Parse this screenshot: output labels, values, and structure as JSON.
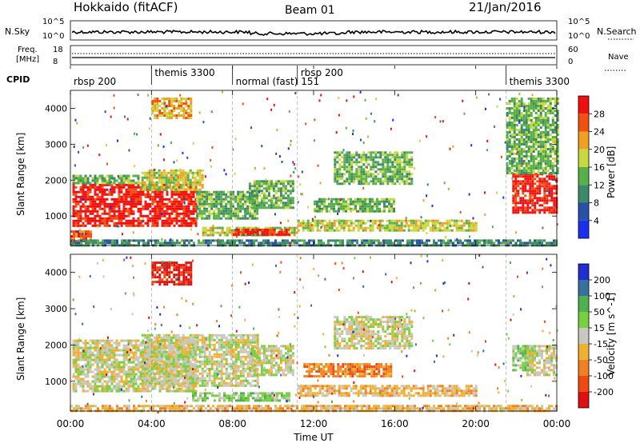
{
  "header": {
    "title": "Hokkaido (fitACF)",
    "beam": "Beam 01",
    "date": "21/Jan/2016"
  },
  "status_panel": {
    "nsky_label": "N.Sky",
    "nsky_ticks": [
      "10^5",
      "10^0"
    ],
    "nsearch_label": "N.Search",
    "nsearch_ticks": [
      "10^5",
      "10^0"
    ],
    "freq_label_line1": "Freq.",
    "freq_label_line2": "[MHz]",
    "freq_ticks": [
      "18",
      "8"
    ],
    "nave_label": "Nave",
    "nave_ticks": [
      "60",
      "0"
    ],
    "cpid_label": "CPID",
    "cpid_segments": [
      {
        "label": "rbsp 200",
        "start_h": 0,
        "end_h": 4
      },
      {
        "label": "themis 3300",
        "start_h": 4,
        "end_h": 8
      },
      {
        "label": "normal (fast) 151",
        "start_h": 8,
        "end_h": 11.2
      },
      {
        "label": "rbsp 200",
        "start_h": 11.2,
        "end_h": 21.5
      },
      {
        "label": "themis 3300",
        "start_h": 21.5,
        "end_h": 24
      }
    ]
  },
  "chart_data": [
    {
      "type": "heatmap",
      "name": "power",
      "ylabel": "Slant Range [km]",
      "yticks": [
        "4000",
        "3000",
        "2000",
        "1000"
      ],
      "ylim": [
        180,
        4500
      ],
      "colorbar_label": "Power [dB]",
      "colorbar_ticks": [
        "28",
        "24",
        "20",
        "16",
        "12",
        "8",
        "4"
      ],
      "colorbar_range": [
        0,
        32
      ],
      "colors": [
        "#1a2ff0",
        "#2a50a8",
        "#3c8a6a",
        "#58b04a",
        "#c8d840",
        "#f0a020",
        "#f05010",
        "#f01010"
      ],
      "regions": [
        {
          "t0": 0.1,
          "t1": 6.2,
          "r0": 700,
          "r1": 1900,
          "level": 7
        },
        {
          "t0": 0.1,
          "t1": 3.5,
          "r0": 1900,
          "r1": 2150,
          "level": 3
        },
        {
          "t0": 3.5,
          "t1": 6.5,
          "r0": 1700,
          "r1": 2300,
          "level": 4
        },
        {
          "t0": 6.2,
          "t1": 9.2,
          "r0": 900,
          "r1": 1700,
          "level": 3
        },
        {
          "t0": 8.8,
          "t1": 11.0,
          "r0": 1200,
          "r1": 2000,
          "level": 3
        },
        {
          "t0": 0.0,
          "t1": 1.0,
          "r0": 300,
          "r1": 600,
          "level": 6
        },
        {
          "t0": 6.5,
          "t1": 11.2,
          "r0": 450,
          "r1": 700,
          "level": 4
        },
        {
          "t0": 8.0,
          "t1": 10.8,
          "r0": 480,
          "r1": 650,
          "level": 7
        },
        {
          "t0": 11.2,
          "t1": 20.0,
          "r0": 600,
          "r1": 900,
          "level": 4
        },
        {
          "t0": 12.0,
          "t1": 16.0,
          "r0": 1150,
          "r1": 1500,
          "level": 3
        },
        {
          "t0": 13.0,
          "t1": 16.8,
          "r0": 1900,
          "r1": 2800,
          "level": 3
        },
        {
          "t0": 4.0,
          "t1": 6.0,
          "r0": 3700,
          "r1": 4300,
          "level": 5
        },
        {
          "t0": 21.8,
          "t1": 24.0,
          "r0": 1100,
          "r1": 2200,
          "level": 7
        },
        {
          "t0": 21.5,
          "t1": 24.0,
          "r0": 2200,
          "r1": 4300,
          "level": 3
        },
        {
          "t0": 0.0,
          "t1": 24.0,
          "r0": 180,
          "r1": 350,
          "level": 2
        }
      ]
    },
    {
      "type": "heatmap",
      "name": "velocity",
      "ylabel": "Slant Range [km]",
      "yticks": [
        "4000",
        "3000",
        "2000",
        "1000"
      ],
      "ylim": [
        180,
        4500
      ],
      "colorbar_label": "Velocity [m s^-1]",
      "colorbar_ticks": [
        "200",
        "100",
        "50",
        "15",
        "-15",
        "-50",
        "-100",
        "-200"
      ],
      "colorbar_range": [
        -250,
        250
      ],
      "colors": [
        "#e01010",
        "#f04a10",
        "#f08020",
        "#f0b030",
        "#c8c8c0",
        "#78d040",
        "#50b050",
        "#3a70a0",
        "#2030d0"
      ],
      "regions": [
        {
          "t0": 0.1,
          "t1": 6.2,
          "r0": 700,
          "r1": 2150,
          "level": 4
        },
        {
          "t0": 3.5,
          "t1": 9.2,
          "r0": 900,
          "r1": 2300,
          "level": 4
        },
        {
          "t0": 8.8,
          "t1": 11.0,
          "r0": 1200,
          "r1": 2000,
          "level": 4
        },
        {
          "t0": 6.0,
          "t1": 10.8,
          "r0": 450,
          "r1": 700,
          "level": 5
        },
        {
          "t0": 11.5,
          "t1": 15.8,
          "r0": 1150,
          "r1": 1500,
          "level": 2
        },
        {
          "t0": 11.2,
          "t1": 20.0,
          "r0": 600,
          "r1": 900,
          "level": 3
        },
        {
          "t0": 13.0,
          "t1": 16.8,
          "r0": 1900,
          "r1": 2800,
          "level": 4
        },
        {
          "t0": 4.0,
          "t1": 6.0,
          "r0": 3700,
          "r1": 4300,
          "level": 0
        },
        {
          "t0": 21.8,
          "t1": 22.8,
          "r0": 1300,
          "r1": 2000,
          "level": 5
        },
        {
          "t0": 22.5,
          "t1": 24.0,
          "r0": 1200,
          "r1": 2000,
          "level": 4
        },
        {
          "t0": 0.0,
          "t1": 24.0,
          "r0": 180,
          "r1": 350,
          "level": 3
        }
      ]
    }
  ],
  "x_axis": {
    "label": "Time UT",
    "ticks": [
      "00:00",
      "04:00",
      "08:00",
      "12:00",
      "16:00",
      "20:00",
      "00:00"
    ],
    "range_hours": [
      0,
      24
    ]
  }
}
